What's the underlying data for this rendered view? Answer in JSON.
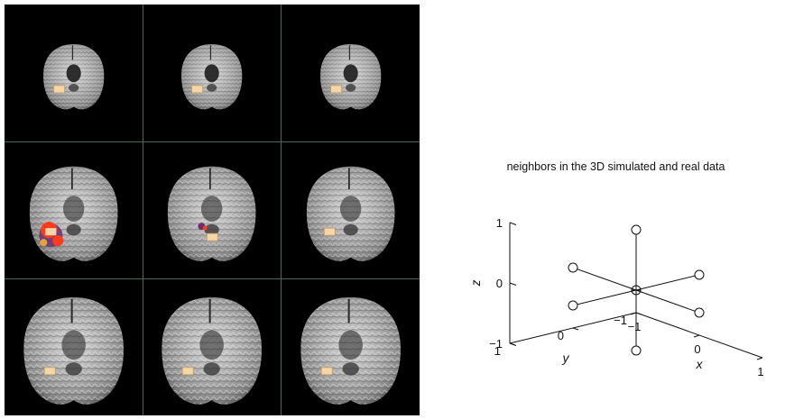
{
  "figure": {
    "left_panel": {
      "rows": 3,
      "cols": 3,
      "slices": [
        {
          "activation": "small"
        },
        {
          "activation": "small"
        },
        {
          "activation": "small"
        },
        {
          "activation": "large"
        },
        {
          "activation": "medium"
        },
        {
          "activation": "small"
        },
        {
          "activation": "small"
        },
        {
          "activation": "small"
        },
        {
          "activation": "small"
        }
      ],
      "colors": {
        "background": "#000000",
        "grid": "#4a6a55",
        "activation_core": "#f4d7a8",
        "activation_hot": "#ff3b1e",
        "activation_cool": "#6b2f6f"
      }
    },
    "right_panel": {
      "chart_data": {
        "type": "scatter",
        "title": "neighbors in the 3D simulated and real data",
        "xlabel": "x",
        "ylabel": "y",
        "zlabel": "z",
        "xlim": [
          -1,
          1
        ],
        "ylim": [
          -1,
          1
        ],
        "zlim": [
          -1,
          1
        ],
        "x_ticks": [
          "−1",
          "0",
          "1"
        ],
        "y_ticks": [
          "−1",
          "0",
          "1"
        ],
        "z_ticks": [
          "−1",
          "0",
          "1"
        ],
        "center": [
          0,
          0,
          0
        ],
        "points": [
          [
            1,
            0,
            0
          ],
          [
            -1,
            0,
            0
          ],
          [
            0,
            1,
            0
          ],
          [
            0,
            -1,
            0
          ],
          [
            0,
            0,
            1
          ],
          [
            0,
            0,
            -1
          ]
        ],
        "marker": "open-circle",
        "grid": false
      }
    }
  }
}
